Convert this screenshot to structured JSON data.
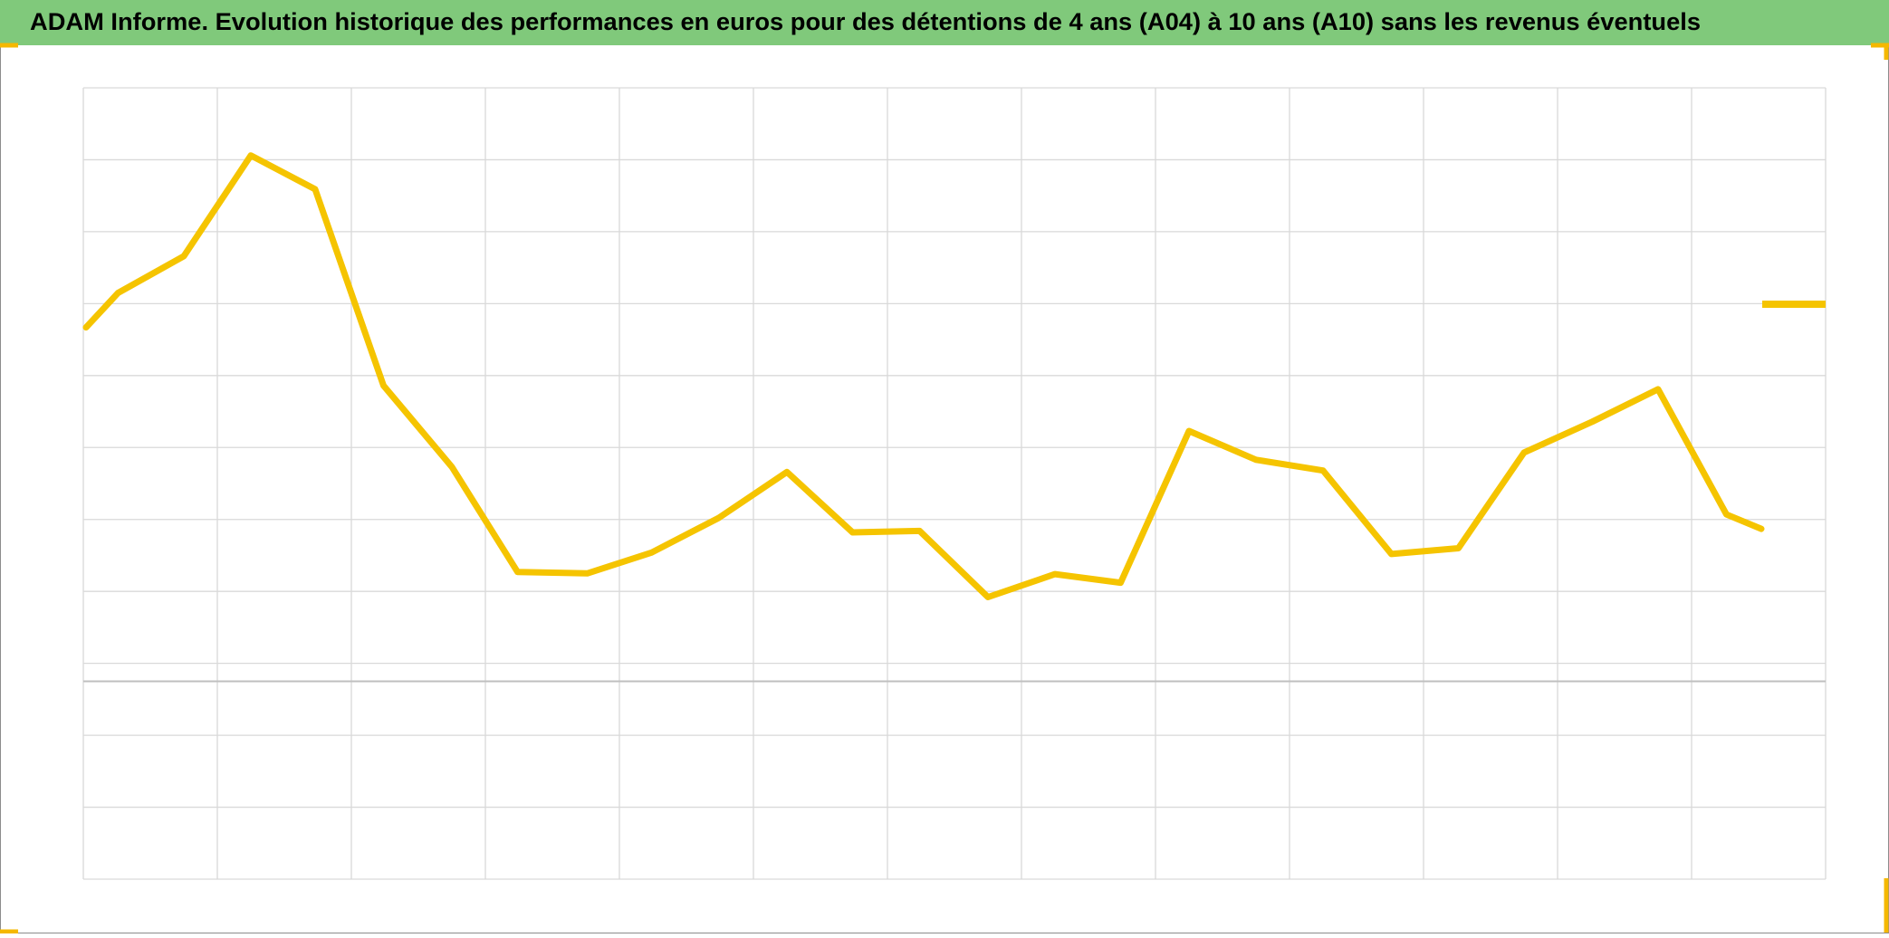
{
  "chart_data": {
    "type": "line",
    "title": "ADAM Informe. Evolution historique des performances en euros pour des détentions de 4 ans (A04) à 10 ans (A10) sans les revenus éventuels",
    "x": [
      0.02,
      0.26,
      0.75,
      1.25,
      1.73,
      2.24,
      2.75,
      3.24,
      3.76,
      4.24,
      4.74,
      5.25,
      5.74,
      6.24,
      6.75,
      7.25,
      7.74,
      8.25,
      8.75,
      9.25,
      9.76,
      10.26,
      10.75,
      11.26,
      11.75,
      12.26,
      12.52
    ],
    "series": [
      {
        "color": "#f5c400",
        "values": [
          7.67,
          8.15,
          8.66,
          10.06,
          9.59,
          6.86,
          5.73,
          4.27,
          4.25,
          4.54,
          5.02,
          5.66,
          4.82,
          4.84,
          3.92,
          4.24,
          4.12,
          6.23,
          5.83,
          5.68,
          4.52,
          4.6,
          5.93,
          6.36,
          6.81,
          5.07,
          4.87
        ]
      }
    ],
    "xlim": [
      0,
      13
    ],
    "xticks": [
      0,
      1,
      2,
      3,
      4,
      5,
      6,
      7,
      8,
      9,
      10,
      11,
      12,
      13
    ],
    "ylim": [
      0,
      11
    ],
    "yticks": [
      0,
      1,
      2,
      3,
      4,
      5,
      6,
      7,
      8,
      9,
      10,
      11
    ],
    "zero_line": 2.75,
    "grid": true
  }
}
